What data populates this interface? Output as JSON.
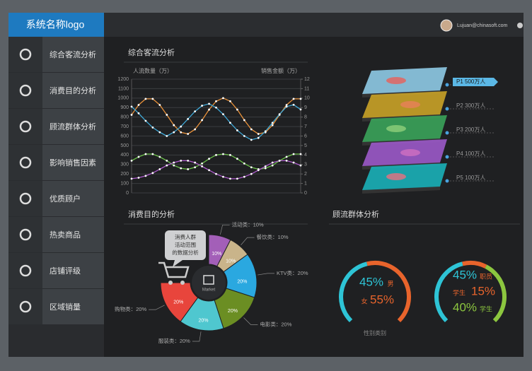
{
  "header": {
    "logo": "系统名称logo",
    "user": "Lujuan@chinasoft.com"
  },
  "menu": [
    "综合客流分析",
    "消费目的分析",
    "顾流群体分析",
    "影响销售因素",
    "优质顾户",
    "热卖商品",
    "店铺评级",
    "区域销量"
  ],
  "layers": {
    "title": "",
    "items": [
      {
        "label": "P1  500万人"
      },
      {
        "label": "P2  300万人"
      },
      {
        "label": "P3  200万人"
      },
      {
        "label": "P4  100万人"
      },
      {
        "label": "P5  100万人"
      }
    ]
  },
  "chart_data": [
    {
      "type": "line",
      "title": "综合客流分析",
      "y_label": "人流数量（万）",
      "y2_label": "销售金额（万）",
      "categories": [
        null,
        null,
        null,
        null,
        null,
        null,
        null,
        null,
        null,
        null,
        null,
        null,
        null,
        null,
        null,
        null,
        null,
        null,
        null,
        null,
        null,
        null,
        null,
        null,
        null
      ],
      "ylim": [
        0,
        1200
      ],
      "yticks": [
        0,
        100,
        200,
        300,
        400,
        500,
        600,
        700,
        800,
        900,
        1000,
        1100,
        1200
      ],
      "y2lim": [
        0,
        12
      ],
      "y2ticks": [
        0,
        1,
        2,
        3,
        4,
        5,
        6,
        7,
        8,
        9,
        10,
        11,
        12
      ],
      "grid": true,
      "series": [
        {
          "color": "#e8913a",
          "values": [
            824,
            928,
            992,
            992,
            928,
            824,
            715,
            639,
            622,
            671,
            768,
            879,
            967,
            1000,
            967,
            879,
            768,
            671,
            622,
            639,
            715,
            824,
            928,
            992,
            992
          ]
        },
        {
          "color": "#3fa9d8",
          "values": [
            910,
            840,
            760,
            690,
            640,
            600,
            640,
            700,
            780,
            860,
            920,
            940,
            900,
            830,
            740,
            660,
            600,
            560,
            580,
            650,
            740,
            830,
            910,
            930,
            880
          ]
        },
        {
          "color": "#6cc04a",
          "axis": "y2",
          "values": [
            3.4,
            3.8,
            4.1,
            4.1,
            3.8,
            3.4,
            2.9,
            2.6,
            2.5,
            2.7,
            3.1,
            3.6,
            4.0,
            4.1,
            4.0,
            3.6,
            3.1,
            2.7,
            2.5,
            2.6,
            2.9,
            3.4,
            3.8,
            4.1,
            4.1
          ]
        },
        {
          "color": "#b05ccf",
          "axis": "y2",
          "values": [
            1.5,
            1.6,
            1.8,
            2.1,
            2.5,
            2.9,
            3.2,
            3.4,
            3.4,
            3.2,
            2.8,
            2.4,
            2.0,
            1.7,
            1.5,
            1.5,
            1.7,
            2.0,
            2.4,
            2.8,
            3.2,
            3.4,
            3.4,
            3.2,
            2.9
          ]
        }
      ]
    },
    {
      "type": "pie",
      "title": "消费目的分析",
      "center_label": "Market",
      "annotations": [
        "消费人群",
        "活动范围",
        "的数据分析"
      ],
      "categories": [
        "活动类：10%",
        "餐饮类：10%",
        "KTV类：20%",
        "电影类：20%",
        "服装类：20%",
        "购物类：20%"
      ],
      "values": [
        10,
        10,
        20,
        20,
        20,
        20
      ],
      "value_labels": [
        "10%",
        "10%",
        "20%",
        "20%",
        "20%",
        "20%"
      ],
      "colors": [
        "#a35fb8",
        "#c9b48a",
        "#2aa8e0",
        "#6b8e23",
        "#4fc7cf",
        "#e8453c"
      ]
    },
    {
      "type": "gauge",
      "title": "顾流群体分析",
      "caption": "性别类别",
      "categories": [
        "男",
        "女"
      ],
      "values": [
        45,
        55
      ],
      "value_labels": [
        "45%",
        "55%"
      ],
      "colors": [
        "#2ec4d6",
        "#e8642c"
      ]
    },
    {
      "type": "gauge",
      "categories": [
        "职员",
        "学生",
        "学生"
      ],
      "values": [
        45,
        15,
        40
      ],
      "value_labels": [
        "45%",
        "15%",
        "40%"
      ],
      "colors": [
        "#2ec4d6",
        "#e8642c",
        "#8cc63f"
      ]
    }
  ]
}
